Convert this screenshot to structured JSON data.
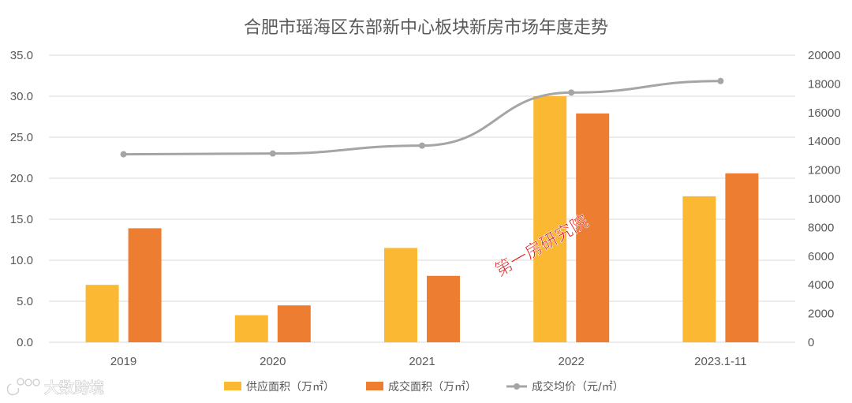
{
  "chart_data": {
    "type": "bar",
    "title": "合肥市瑶海区东部新中心板块新房市场年度走势",
    "categories": [
      "2019",
      "2020",
      "2021",
      "2022",
      "2023.1-11"
    ],
    "series": [
      {
        "name": "供应面积（万㎡）",
        "kind": "bar",
        "axis": "left",
        "color": "#fbb832",
        "values": [
          7.0,
          3.3,
          11.5,
          30.0,
          17.8
        ]
      },
      {
        "name": "成交面积（万㎡）",
        "kind": "bar",
        "axis": "left",
        "color": "#ed7d31",
        "values": [
          13.9,
          4.5,
          8.1,
          27.9,
          20.6
        ]
      },
      {
        "name": "成交均价（元/㎡）",
        "kind": "line",
        "axis": "right",
        "color": "#a5a5a5",
        "values": [
          13100,
          13150,
          13700,
          17400,
          18200
        ]
      }
    ],
    "y_left": {
      "ylim": [
        0,
        35
      ],
      "ticks": [
        "0.0",
        "5.0",
        "10.0",
        "15.0",
        "20.0",
        "25.0",
        "30.0",
        "35.0"
      ]
    },
    "y_right": {
      "ylim": [
        0,
        20000
      ],
      "ticks": [
        "0",
        "2000",
        "4000",
        "6000",
        "8000",
        "10000",
        "12000",
        "14000",
        "16000",
        "18000",
        "20000"
      ]
    },
    "grid": true,
    "legend": "bottom"
  },
  "watermark": "第一房研究院",
  "logo": "大数跨境"
}
